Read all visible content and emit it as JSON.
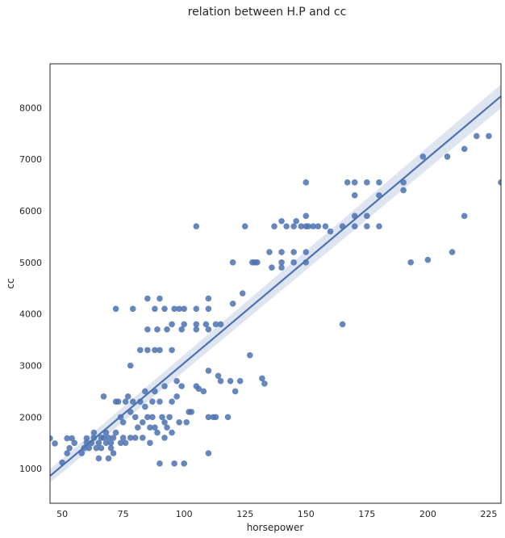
{
  "chart_data": {
    "type": "scatter",
    "title": "relation between H.P and cc",
    "xlabel": "horsepower",
    "ylabel": "cc",
    "xlim": [
      45,
      230
    ],
    "ylim": [
      330,
      8850
    ],
    "xticks": [
      50,
      75,
      100,
      125,
      150,
      175,
      200,
      225
    ],
    "yticks": [
      1000,
      2000,
      3000,
      4000,
      5000,
      6000,
      7000,
      8000
    ],
    "grid": false,
    "marker_color": "#4c72b0",
    "line_color": "#4c72b0",
    "ci_color": "#c8d3e8",
    "regression": {
      "x": [
        45,
        230
      ],
      "y": [
        860,
        8220
      ],
      "ci_halfwidth": [
        130,
        230
      ]
    },
    "points": [
      [
        45,
        1590
      ],
      [
        47,
        1490
      ],
      [
        50,
        1120
      ],
      [
        52,
        1590
      ],
      [
        52,
        1300
      ],
      [
        53,
        1400
      ],
      [
        54,
        1590
      ],
      [
        55,
        1500
      ],
      [
        58,
        1300
      ],
      [
        59,
        1400
      ],
      [
        60,
        1590
      ],
      [
        60,
        1500
      ],
      [
        61,
        1400
      ],
      [
        62,
        1500
      ],
      [
        63,
        1600
      ],
      [
        63,
        1700
      ],
      [
        64,
        1400
      ],
      [
        65,
        1200
      ],
      [
        65,
        1500
      ],
      [
        66,
        1600
      ],
      [
        66,
        1400
      ],
      [
        67,
        1600
      ],
      [
        67,
        2400
      ],
      [
        68,
        1500
      ],
      [
        68,
        1700
      ],
      [
        69,
        1200
      ],
      [
        69,
        1600
      ],
      [
        70,
        1500
      ],
      [
        70,
        1400
      ],
      [
        71,
        1600
      ],
      [
        71,
        1300
      ],
      [
        72,
        1700
      ],
      [
        72,
        2300
      ],
      [
        72,
        4100
      ],
      [
        73,
        2300
      ],
      [
        74,
        1500
      ],
      [
        74,
        2000
      ],
      [
        75,
        1600
      ],
      [
        75,
        1900
      ],
      [
        76,
        1500
      ],
      [
        76,
        2300
      ],
      [
        77,
        2400
      ],
      [
        78,
        3000
      ],
      [
        78,
        1600
      ],
      [
        78,
        2100
      ],
      [
        79,
        2300
      ],
      [
        79,
        4100
      ],
      [
        80,
        1600
      ],
      [
        80,
        2000
      ],
      [
        81,
        1800
      ],
      [
        82,
        3300
      ],
      [
        82,
        2300
      ],
      [
        83,
        1900
      ],
      [
        83,
        1600
      ],
      [
        84,
        2500
      ],
      [
        84,
        2200
      ],
      [
        85,
        4300
      ],
      [
        85,
        3700
      ],
      [
        85,
        3300
      ],
      [
        85,
        2000
      ],
      [
        86,
        1500
      ],
      [
        86,
        1800
      ],
      [
        87,
        2300
      ],
      [
        87,
        2000
      ],
      [
        88,
        4100
      ],
      [
        88,
        3300
      ],
      [
        88,
        2500
      ],
      [
        88,
        1800
      ],
      [
        89,
        3700
      ],
      [
        89,
        1700
      ],
      [
        90,
        4300
      ],
      [
        90,
        3300
      ],
      [
        90,
        2300
      ],
      [
        90,
        1100
      ],
      [
        91,
        2000
      ],
      [
        92,
        4100
      ],
      [
        92,
        1600
      ],
      [
        92,
        1900
      ],
      [
        92,
        2600
      ],
      [
        93,
        3700
      ],
      [
        93,
        1800
      ],
      [
        94,
        2000
      ],
      [
        95,
        3800
      ],
      [
        95,
        3300
      ],
      [
        95,
        2300
      ],
      [
        95,
        1700
      ],
      [
        96,
        4100
      ],
      [
        96,
        1100
      ],
      [
        97,
        2400
      ],
      [
        97,
        2700
      ],
      [
        98,
        1900
      ],
      [
        98,
        4100
      ],
      [
        99,
        3700
      ],
      [
        99,
        2600
      ],
      [
        100,
        3800
      ],
      [
        100,
        4100
      ],
      [
        100,
        1100
      ],
      [
        101,
        1900
      ],
      [
        102,
        2100
      ],
      [
        103,
        2100
      ],
      [
        105,
        5700
      ],
      [
        105,
        3800
      ],
      [
        105,
        4100
      ],
      [
        105,
        3700
      ],
      [
        105,
        2600
      ],
      [
        106,
        2550
      ],
      [
        108,
        2500
      ],
      [
        109,
        3800
      ],
      [
        110,
        4300
      ],
      [
        110,
        4100
      ],
      [
        110,
        3700
      ],
      [
        110,
        2900
      ],
      [
        110,
        2000
      ],
      [
        110,
        1300
      ],
      [
        112,
        2000
      ],
      [
        113,
        2000
      ],
      [
        113,
        3800
      ],
      [
        114,
        2800
      ],
      [
        115,
        2700
      ],
      [
        115,
        3800
      ],
      [
        118,
        2000
      ],
      [
        119,
        2700
      ],
      [
        120,
        5000
      ],
      [
        120,
        4200
      ],
      [
        121,
        2500
      ],
      [
        123,
        2700
      ],
      [
        124,
        4400
      ],
      [
        125,
        5700
      ],
      [
        127,
        3200
      ],
      [
        128,
        5000
      ],
      [
        129,
        5000
      ],
      [
        130,
        5000
      ],
      [
        132,
        2750
      ],
      [
        133,
        2650
      ],
      [
        135,
        5200
      ],
      [
        136,
        4900
      ],
      [
        137,
        5700
      ],
      [
        140,
        5000
      ],
      [
        140,
        5800
      ],
      [
        140,
        5200
      ],
      [
        140,
        4900
      ],
      [
        142,
        5700
      ],
      [
        145,
        5200
      ],
      [
        145,
        5000
      ],
      [
        145,
        5700
      ],
      [
        146,
        5800
      ],
      [
        148,
        5700
      ],
      [
        150,
        6550
      ],
      [
        150,
        5900
      ],
      [
        150,
        5700
      ],
      [
        150,
        5200
      ],
      [
        150,
        5000
      ],
      [
        151,
        5700
      ],
      [
        153,
        5700
      ],
      [
        155,
        5700
      ],
      [
        158,
        5700
      ],
      [
        160,
        5600
      ],
      [
        165,
        3800
      ],
      [
        165,
        5700
      ],
      [
        167,
        6550
      ],
      [
        170,
        6550
      ],
      [
        170,
        6300
      ],
      [
        170,
        5900
      ],
      [
        170,
        5700
      ],
      [
        175,
        6550
      ],
      [
        175,
        5900
      ],
      [
        175,
        5700
      ],
      [
        180,
        6550
      ],
      [
        180,
        6300
      ],
      [
        180,
        5700
      ],
      [
        190,
        6550
      ],
      [
        190,
        6400
      ],
      [
        193,
        5000
      ],
      [
        198,
        7050
      ],
      [
        200,
        5050
      ],
      [
        208,
        7050
      ],
      [
        210,
        5200
      ],
      [
        215,
        7200
      ],
      [
        215,
        5900
      ],
      [
        220,
        7450
      ],
      [
        225,
        7450
      ],
      [
        230,
        6550
      ]
    ]
  }
}
